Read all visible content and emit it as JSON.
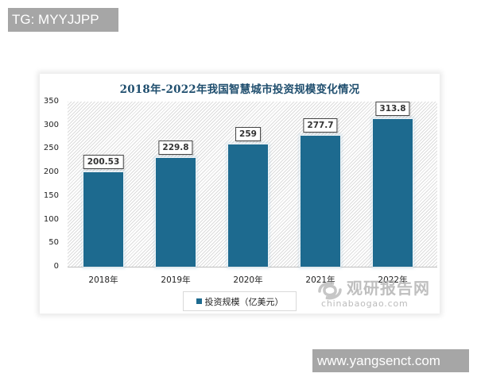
{
  "overlay": {
    "top_left_badge": "TG: MYYJJPP",
    "bottom_right_badge": "www.yangsenct.com"
  },
  "watermark": {
    "cn": "观研报告网",
    "en": "chinabaogao.com"
  },
  "chart_data": {
    "type": "bar",
    "title": "2018年-2022年我国智慧城市投资规模变化情况",
    "xlabel": "",
    "ylabel": "",
    "categories": [
      "2018年",
      "2019年",
      "2020年",
      "2021年",
      "2022年"
    ],
    "series": [
      {
        "name": "投资规模（亿美元）",
        "values": [
          200.53,
          229.8,
          259,
          277.7,
          313.8
        ],
        "color": "#1d6a8f"
      }
    ],
    "data_labels": [
      "200.53",
      "229.8",
      "259",
      "277.7",
      "313.8"
    ],
    "yticks": [
      0,
      50,
      100,
      150,
      200,
      250,
      300,
      350
    ],
    "ylim": [
      0,
      350
    ],
    "grid": false,
    "legend_position": "bottom",
    "plot_background": "diagonal-hatch"
  }
}
